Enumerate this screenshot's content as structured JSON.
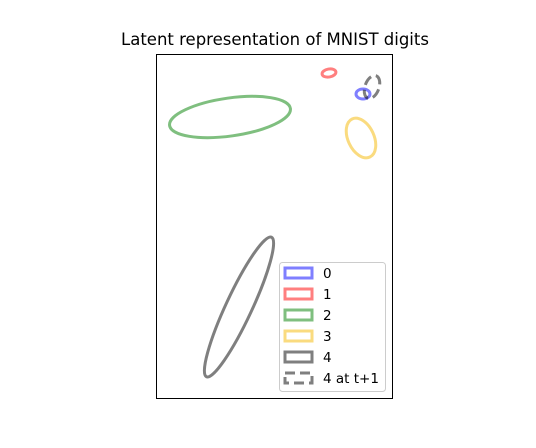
{
  "chart_data": {
    "type": "scatter",
    "title": "Latent representation of MNIST digits",
    "xlabel": "",
    "ylabel": "",
    "grid": false,
    "axis_ticks": false,
    "legend_placement": "lower-right",
    "series": [
      {
        "name": "0",
        "color": "#0000ff",
        "line_style": "solid",
        "ellipse": {
          "center": [
            0.88,
            0.11
          ],
          "rx": 0.07,
          "ry": 0.03,
          "angle": 0
        }
      },
      {
        "name": "1",
        "color": "#ff0000",
        "line_style": "solid",
        "ellipse": {
          "center": [
            0.73,
            0.055
          ],
          "rx": 0.05,
          "ry": 0.016,
          "angle": -10
        }
      },
      {
        "name": "2",
        "color": "#008000",
        "line_style": "solid",
        "ellipse": {
          "center": [
            0.31,
            0.18
          ],
          "rx": 0.53,
          "ry": 0.05,
          "angle": -8
        }
      },
      {
        "name": "3",
        "color": "#f5b800",
        "line_style": "solid",
        "ellipse": {
          "center": [
            0.87,
            0.24
          ],
          "rx": 0.06,
          "ry": 0.06,
          "angle": 58
        }
      },
      {
        "name": "4",
        "color": "#000000",
        "line_style": "solid",
        "ellipse": {
          "center": [
            0.23,
            0.73
          ],
          "rx": 0.22,
          "ry": 0.055,
          "angle": -65
        }
      },
      {
        "name": "4 at t+1",
        "color": "#000000",
        "line_style": "dashed",
        "ellipse": {
          "center": [
            0.92,
            0.09
          ],
          "rx": 0.06,
          "ry": 0.03,
          "angle": -45
        }
      }
    ],
    "legend": [
      "0",
      "1",
      "2",
      "3",
      "4",
      "4 at t+1"
    ],
    "alpha": 0.5
  }
}
